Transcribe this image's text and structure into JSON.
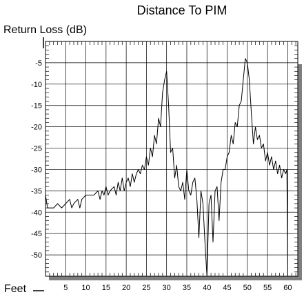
{
  "chart_data": {
    "type": "line",
    "title": "Distance To PIM",
    "ylabel": "Return Loss (dB)",
    "xlabel": "Feet",
    "xlim": [
      0,
      62.5
    ],
    "ylim": [
      -55,
      0
    ],
    "x_ticks": [
      5,
      10,
      15,
      20,
      25,
      30,
      35,
      40,
      45,
      50,
      55,
      60
    ],
    "y_ticks": [
      -5,
      -10,
      -15,
      -20,
      -25,
      -30,
      -35,
      -40,
      -45,
      -50
    ],
    "grid": true,
    "colors": {
      "line": "#000000",
      "grid": "#000000",
      "frame_shadow": "#7f7f7f"
    },
    "series": [
      {
        "x": [
          0,
          0.5,
          1,
          2,
          3,
          4,
          5,
          6,
          6.5,
          7,
          8,
          8.5,
          9,
          10,
          11,
          12,
          13,
          13.5,
          14,
          14.5,
          15,
          15.5,
          16,
          17,
          17.5,
          18,
          18.5,
          19,
          19.5,
          20,
          20.5,
          21,
          21.5,
          22,
          22.5,
          23,
          23.5,
          24,
          24.5,
          25,
          25.5,
          26,
          26.5,
          27,
          27.5,
          28,
          28.5,
          29,
          29.5,
          30,
          30.5,
          31,
          31.5,
          32,
          32.5,
          33,
          33.5,
          34,
          34.5,
          35,
          35.5,
          36,
          36.5,
          37,
          37.5,
          38,
          38.5,
          39,
          39.5,
          40,
          40.5,
          41,
          41.5,
          42,
          42.5,
          43,
          43.5,
          44,
          44.5,
          45,
          45.5,
          46,
          46.5,
          47,
          47.5,
          48,
          48.5,
          49,
          49.5,
          50,
          50.5,
          51,
          51.5,
          52,
          52.5,
          53,
          53.5,
          54,
          54.5,
          55,
          55.5,
          56,
          56.5,
          57,
          57.5,
          58,
          58.5,
          59,
          59.5,
          59.8,
          60
        ],
        "y": [
          -36,
          -39,
          -39,
          -39,
          -38,
          -39,
          -38,
          -37,
          -39,
          -38,
          -37,
          -39,
          -37,
          -36,
          -36,
          -36,
          -35,
          -37,
          -35,
          -36,
          -34,
          -36,
          -35,
          -34,
          -36,
          -33,
          -35,
          -32,
          -35,
          -33,
          -32,
          -34,
          -31,
          -33,
          -31,
          -30,
          -31,
          -29,
          -30,
          -27,
          -29,
          -25,
          -27,
          -22,
          -24,
          -18,
          -20,
          -12,
          -9,
          -7,
          -15,
          -26,
          -25,
          -32,
          -29,
          -34,
          -35,
          -33,
          -37,
          -30,
          -35,
          -36,
          -33,
          -32,
          -37,
          -46,
          -35,
          -38,
          -47,
          -55,
          -38,
          -36,
          -47,
          -35,
          -34,
          -42,
          -33,
          -30,
          -30,
          -27,
          -26,
          -22,
          -24,
          -19,
          -20,
          -15,
          -14,
          -9,
          -4,
          -5,
          -9,
          -17,
          -24,
          -20,
          -23,
          -22,
          -25,
          -24,
          -28,
          -26,
          -29,
          -27,
          -30,
          -28,
          -31,
          -29,
          -32,
          -30,
          -31,
          -30,
          -55
        ]
      }
    ]
  }
}
